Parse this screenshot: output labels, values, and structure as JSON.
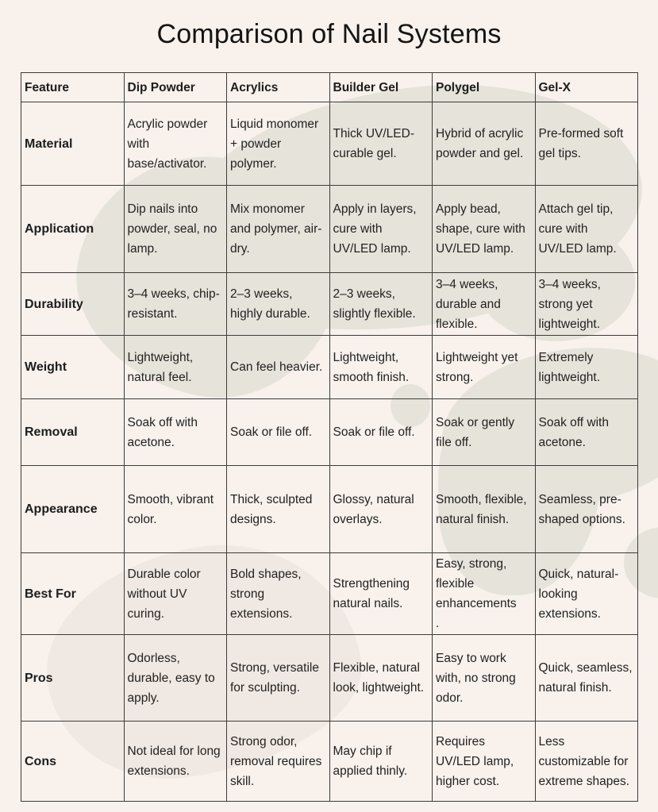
{
  "title": "Comparison of Nail Systems",
  "colors": {
    "background": "#f8f1ec",
    "blob_gray": "#e6e3da",
    "blob_pink": "#f0e8e2",
    "table_border": "#3c3c3c",
    "text": "#1d1d1d"
  },
  "table": {
    "headers": [
      "Feature",
      "Dip Powder",
      "Acrylics",
      "Builder Gel",
      "Polygel",
      "Gel-X"
    ],
    "rows": [
      {
        "feature": "Material",
        "cells": [
          "Acrylic powder with base/activator.",
          "Liquid monomer + powder polymer.",
          "Thick UV/LED-curable gel.",
          "Hybrid of acrylic powder and gel.",
          "Pre-formed soft gel tips."
        ]
      },
      {
        "feature": "Application",
        "cells": [
          "Dip nails into powder, seal, no lamp.",
          "Mix monomer and polymer, air-dry.",
          "Apply in layers, cure with UV/LED lamp.",
          "Apply bead, shape, cure with UV/LED lamp.",
          "Attach gel tip, cure with UV/LED lamp."
        ]
      },
      {
        "feature": "Durability",
        "cells": [
          "3–4 weeks, chip-resistant.",
          "2–3 weeks, highly durable.",
          "2–3 weeks, slightly flexible.",
          "3–4 weeks, durable and flexible.",
          "3–4 weeks, strong yet lightweight."
        ]
      },
      {
        "feature": "Weight",
        "cells": [
          "Lightweight, natural feel.",
          "Can feel heavier.",
          "Lightweight, smooth finish.",
          "Lightweight yet strong.",
          "Extremely lightweight."
        ]
      },
      {
        "feature": "Removal",
        "cells": [
          "Soak off with acetone.",
          "Soak or file off.",
          "Soak or file off.",
          "Soak or gently file off.",
          "Soak off with acetone."
        ]
      },
      {
        "feature": "Appearance",
        "cells": [
          "Smooth, vibrant color.",
          "Thick, sculpted designs.",
          "Glossy, natural overlays.",
          "Smooth, flexible, natural finish.",
          "Seamless, pre-shaped options."
        ]
      },
      {
        "feature": "Best For",
        "cells": [
          "Durable color without UV curing.",
          "Bold shapes, strong extensions.",
          "Strengthening natural nails.",
          "Easy, strong, flexible enhancements\n.",
          "Quick, natural-looking extensions."
        ]
      },
      {
        "feature": "Pros",
        "cells": [
          "Odorless, durable, easy to apply.",
          "Strong, versatile for sculpting.",
          "Flexible, natural look, lightweight.",
          "Easy to work with, no strong odor.",
          "Quick, seamless, natural finish."
        ]
      },
      {
        "feature": "Cons",
        "cells": [
          "Not ideal for long extensions.",
          "Strong odor, removal requires skill.",
          "May chip if applied thinly.",
          "Requires UV/LED lamp, higher cost.",
          "Less customizable for extreme shapes."
        ]
      }
    ]
  }
}
